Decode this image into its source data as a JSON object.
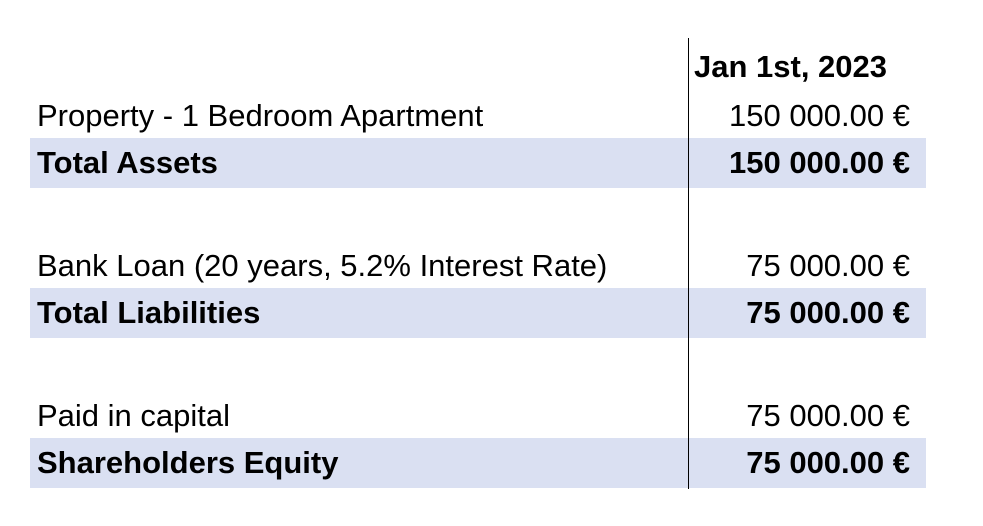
{
  "header": {
    "date": "Jan 1st, 2023"
  },
  "assets": {
    "item_label": "Property - 1 Bedroom Apartment",
    "item_value": "150 000.00 €",
    "total_label": "Total Assets",
    "total_value": "150 000.00 €"
  },
  "liabilities": {
    "item_label": "Bank Loan (20 years, 5.2% Interest Rate)",
    "item_value": "75 000.00 €",
    "total_label": "Total Liabilities",
    "total_value": "75 000.00 €"
  },
  "equity": {
    "item_label": "Paid in capital",
    "item_value": "75 000.00 €",
    "total_label": "Shareholders Equity",
    "total_value": "75 000.00 €"
  },
  "colors": {
    "total_row_fill": "#dae0f2",
    "text": "#000000",
    "divider": "#000000"
  }
}
